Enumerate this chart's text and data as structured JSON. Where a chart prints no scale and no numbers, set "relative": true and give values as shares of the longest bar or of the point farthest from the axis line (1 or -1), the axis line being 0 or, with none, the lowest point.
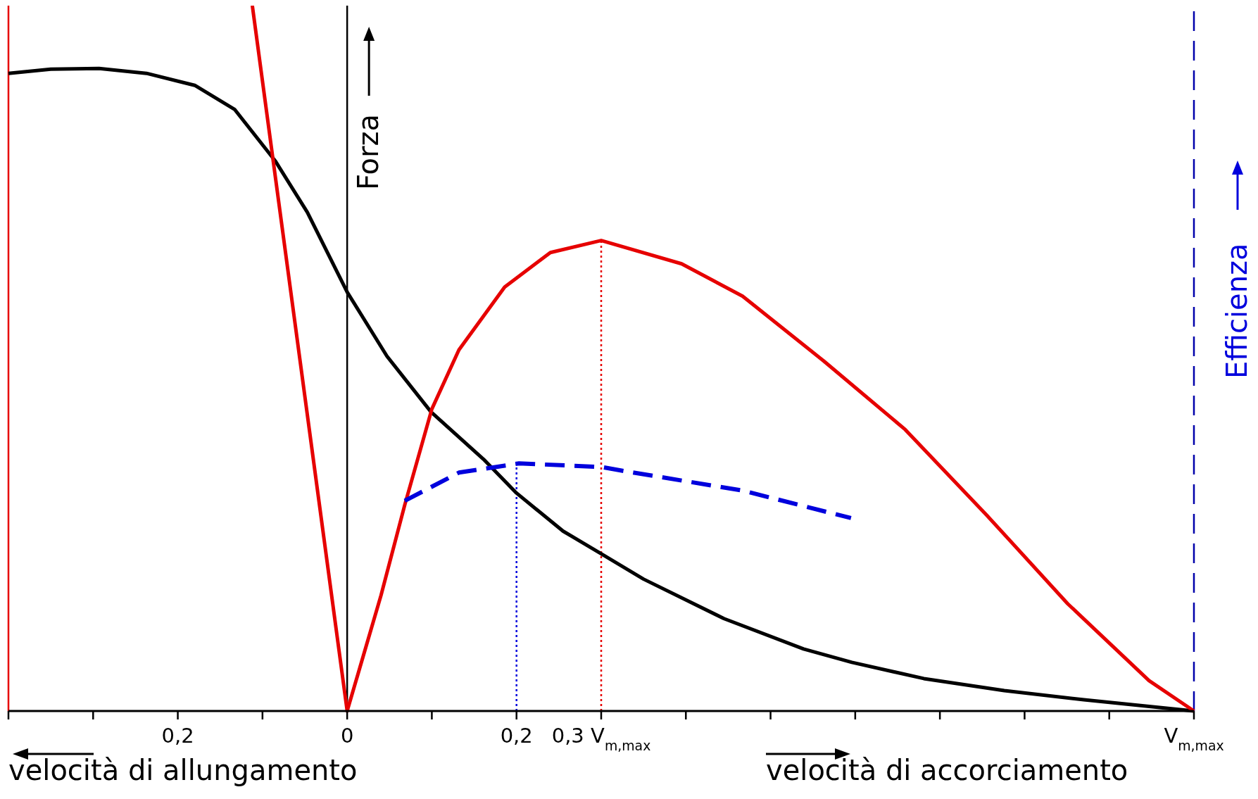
{
  "chart_data": {
    "type": "line",
    "relative": true,
    "ylabel": "Forza",
    "y2label": "Efficienza",
    "xlim": [
      -0.4,
      1
    ],
    "xticks": [
      {
        "value": -0.4,
        "label": null
      },
      {
        "value": -0.3,
        "label": null
      },
      {
        "value": -0.2,
        "label": "0,2"
      },
      {
        "value": -0.1,
        "label": null
      },
      {
        "value": 0,
        "label": "0"
      },
      {
        "value": 0.1,
        "label": null
      },
      {
        "value": 0.2,
        "label": "0,2"
      },
      {
        "value": 0.3,
        "label": "0,3 V$_{m,max}$"
      },
      {
        "value": 0.4,
        "label": null
      },
      {
        "value": 0.5,
        "label": null
      },
      {
        "value": 0.6,
        "label": null
      },
      {
        "value": 0.7,
        "label": null
      },
      {
        "value": 0.8,
        "label": null
      },
      {
        "value": 0.9,
        "label": null
      },
      {
        "value": 1,
        "label": "V$_{m,max}$"
      }
    ],
    "series": [
      {
        "color": "#000000",
        "line_style": "solid",
        "x": [
          -0.4,
          -0.35,
          -0.293,
          -0.237,
          -0.18,
          -0.133,
          -0.085,
          -0.047,
          0,
          0.047,
          0.099,
          0.161,
          0.2,
          0.255,
          0.3,
          0.35,
          0.445,
          0.539,
          0.596,
          0.681,
          0.776,
          0.87,
          1
        ],
        "values": [
          0.904,
          0.91,
          0.911,
          0.904,
          0.887,
          0.853,
          0.78,
          0.707,
          0.594,
          0.503,
          0.424,
          0.357,
          0.309,
          0.255,
          0.223,
          0.187,
          0.131,
          0.088,
          0.069,
          0.046,
          0.029,
          0.016,
          0
        ]
      },
      {
        "color": "#e60000",
        "line_style": "solid",
        "x": [
          -0.112,
          0,
          0.04,
          0.068,
          0.1,
          0.132,
          0.186,
          0.24,
          0.3,
          0.395,
          0.467,
          0.563,
          0.659,
          0.755,
          0.851,
          0.947,
          1
        ],
        "values": [
          1,
          0,
          0.164,
          0.292,
          0.428,
          0.512,
          0.601,
          0.65,
          0.667,
          0.634,
          0.588,
          0.496,
          0.399,
          0.278,
          0.152,
          0.043,
          0
        ]
      },
      {
        "color": "#0000dd",
        "line_style": "dashed",
        "x": [
          0.068,
          0.132,
          0.203,
          0.3,
          0.323,
          0.467,
          0.595
        ],
        "values": [
          0.298,
          0.338,
          0.351,
          0.346,
          0.341,
          0.3125,
          0.2735
        ]
      }
    ],
    "ref_lines": [
      {
        "axis": "x",
        "value": -0.4,
        "color": "#e60000",
        "line_style": "solid"
      },
      {
        "axis": "x",
        "value": 0,
        "color": "#000000",
        "line_style": "solid"
      },
      {
        "axis": "x",
        "value": 1,
        "color": "#0000aa",
        "line_style": "dashed"
      },
      {
        "axis": "x",
        "value": 0.2,
        "color": "#0000dd",
        "line_style": "dotted"
      },
      {
        "axis": "x",
        "value": 0.3,
        "color": "#e60000",
        "line_style": "dotted"
      }
    ],
    "annotations": [
      "velocità di allungamento",
      "velocità di accorciamento"
    ]
  }
}
